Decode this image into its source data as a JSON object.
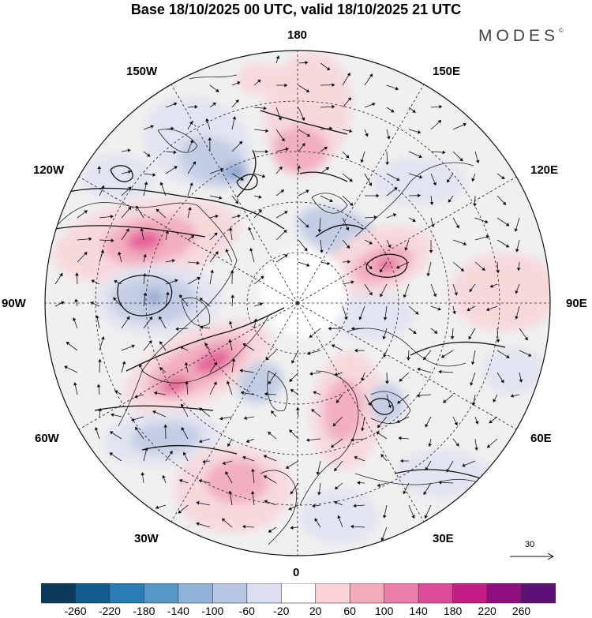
{
  "title": "Base 18/10/2025 00 UTC, valid 18/10/2025 21 UTC",
  "brand": {
    "name": "MODES",
    "mark": "©"
  },
  "map": {
    "projection": "north-polar-stereographic",
    "longitude_labels": {
      "top": "180",
      "top_right": "150E",
      "upper_right": "120E",
      "right": "90E",
      "lower_right": "60E",
      "bottom_right": "30E",
      "bottom": "0",
      "bottom_left": "30W",
      "lower_left": "60W",
      "left": "90W",
      "upper_left": "120W",
      "top_left": "150W"
    },
    "anomaly_colors": {
      "strong_negative": "#8fa6cf",
      "negative": "#c3cde4",
      "weak_negative": "#e2e4f1",
      "neutral": "#f0f0f0",
      "weak_positive": "#f7d9dc",
      "positive": "#f2afbf",
      "strong_positive": "#e4649a"
    }
  },
  "wind_scale": {
    "label": "30"
  },
  "colorbar": {
    "colors": [
      "#0b3a5c",
      "#125d8d",
      "#2a7db4",
      "#5699c8",
      "#8fb2d8",
      "#b7c6e2",
      "#dcdff0",
      "#ffffff",
      "#f9d3d5",
      "#f3abbb",
      "#ec7fa9",
      "#dc4c9a",
      "#c41d85",
      "#8f0e82",
      "#5e0f73"
    ],
    "tick_labels": [
      "-260",
      "-220",
      "-180",
      "-140",
      "-100",
      "-60",
      "-20",
      "20",
      "60",
      "100",
      "140",
      "180",
      "220",
      "260"
    ]
  }
}
